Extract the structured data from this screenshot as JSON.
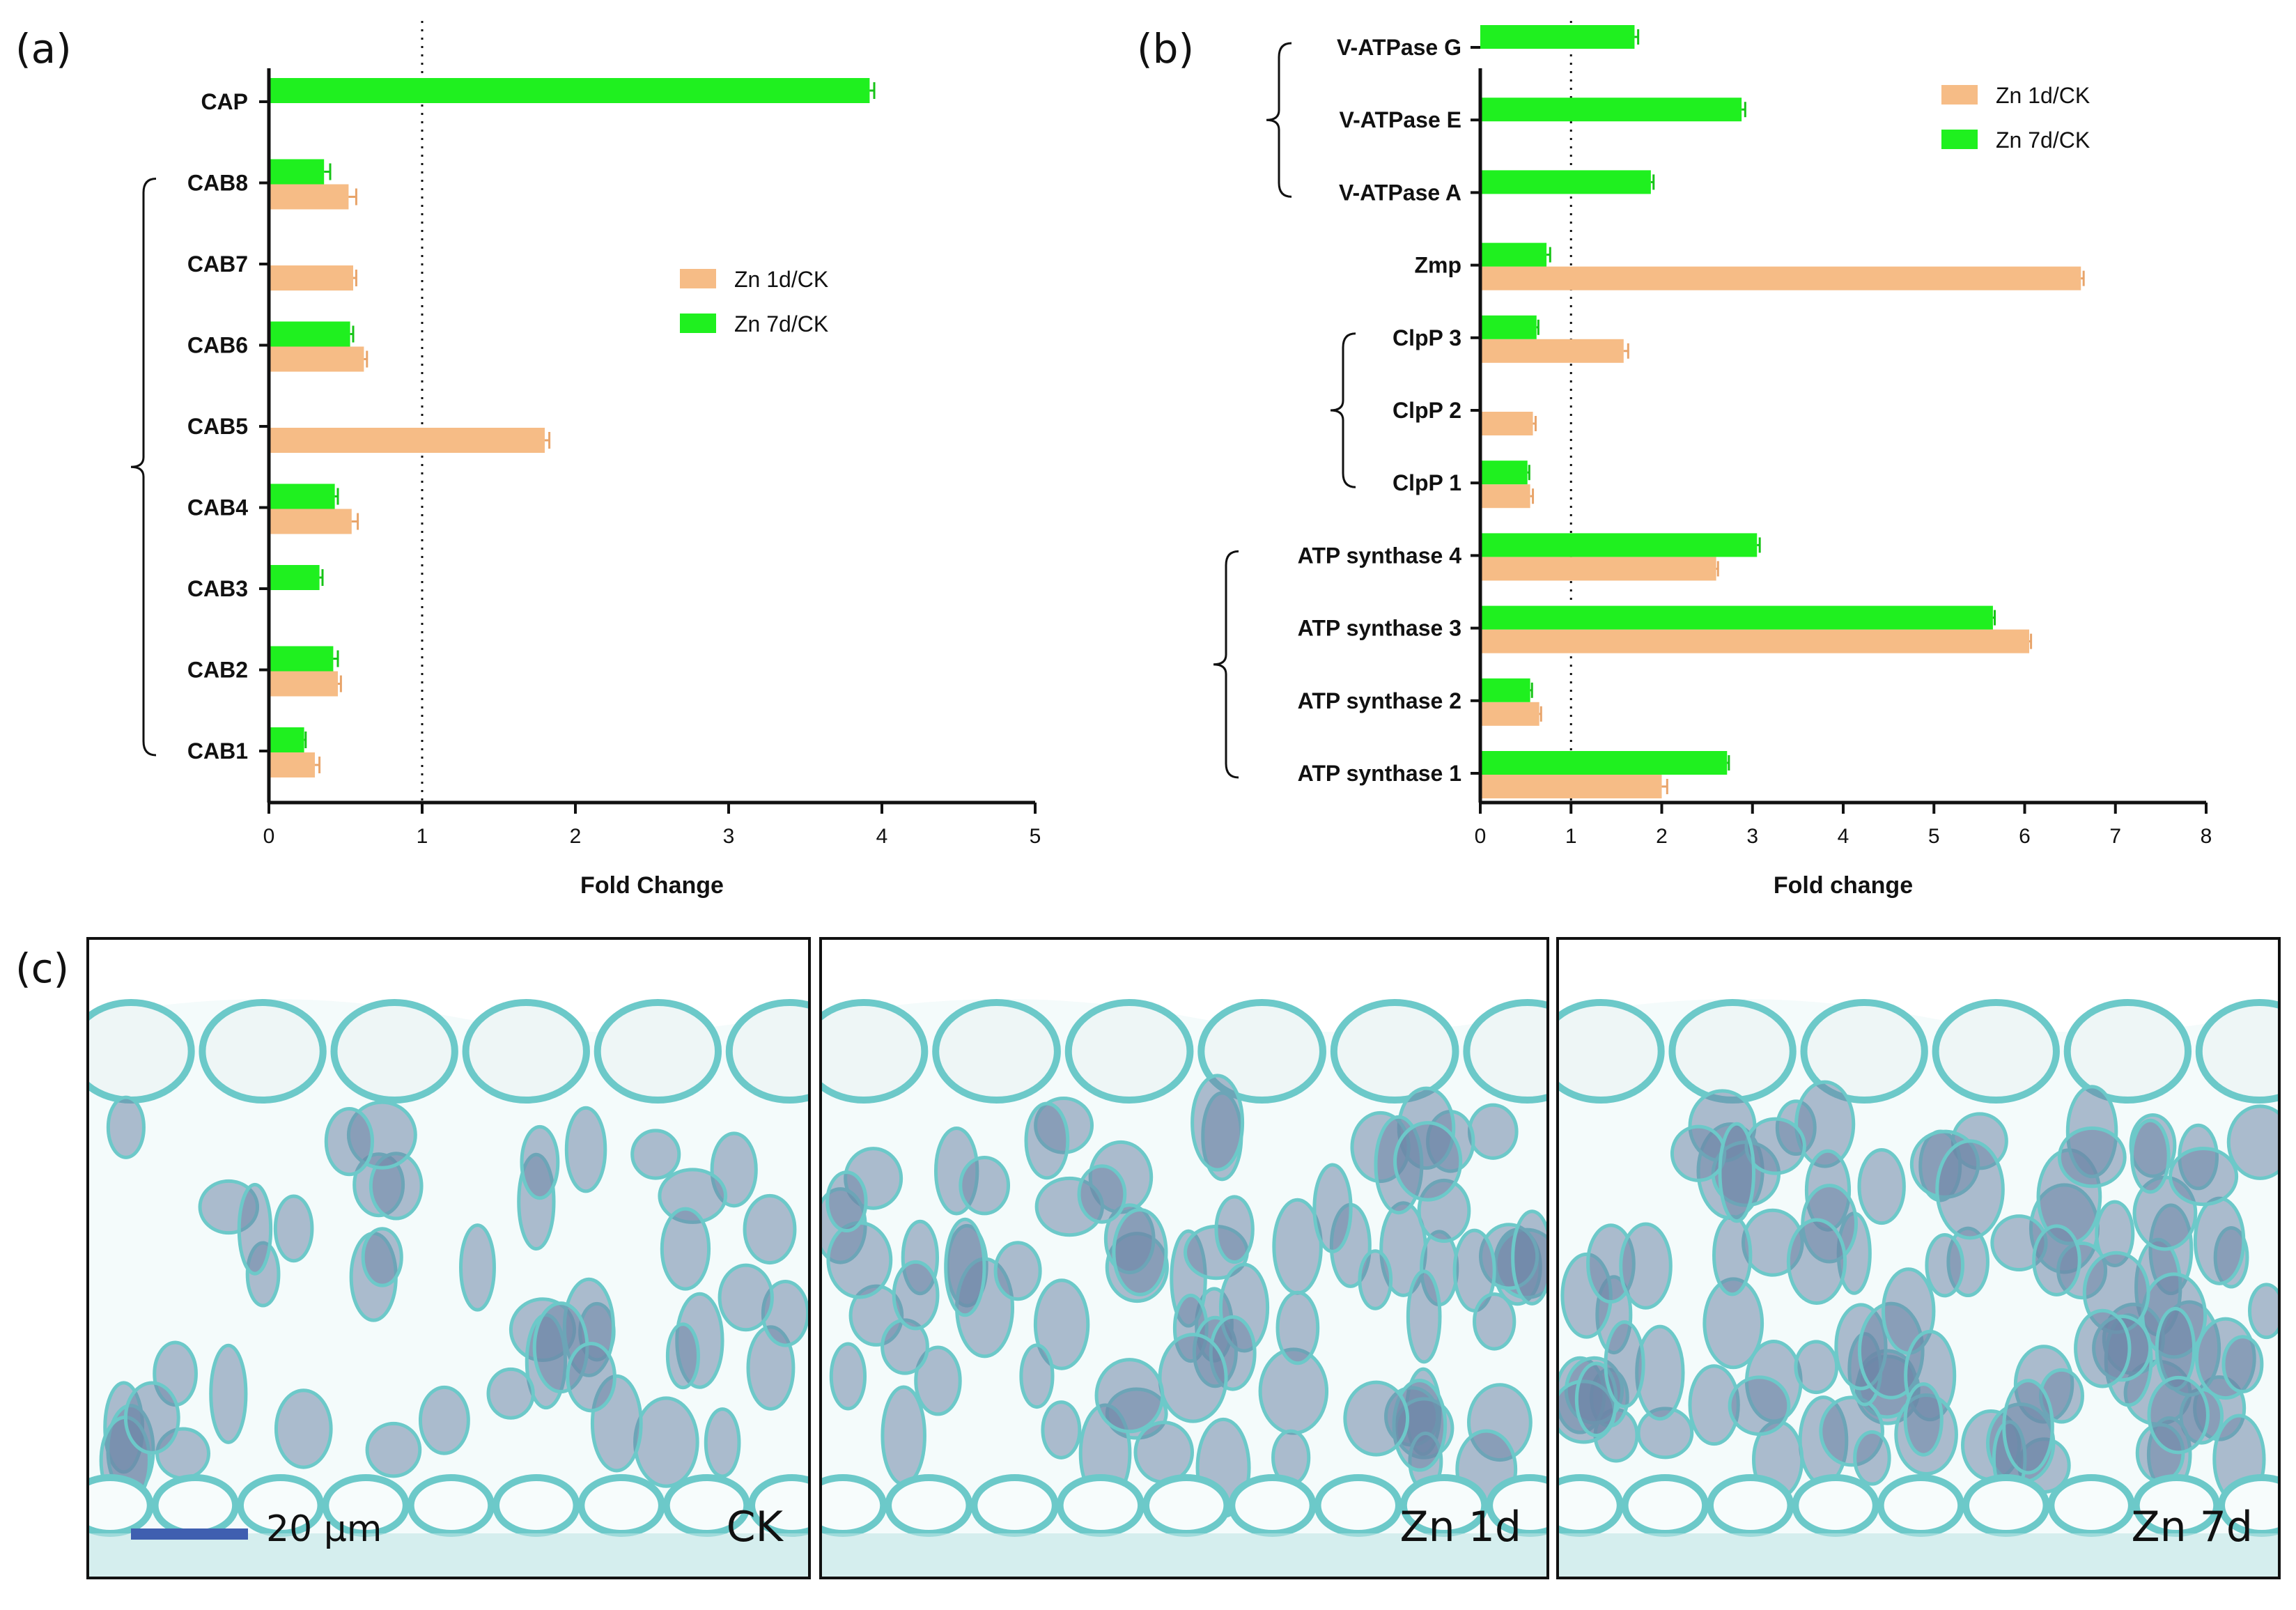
{
  "panels": {
    "a_label": "(a)",
    "b_label": "(b)",
    "c_label": "(c)"
  },
  "colors": {
    "zn1d": "#f6bc86",
    "zn7d": "#1ff01f",
    "axis": "#000000",
    "tissue": "#6cc9c9",
    "cell": "#6e86a8"
  },
  "chart_data": [
    {
      "id": "a",
      "type": "bar",
      "orientation": "horizontal",
      "title": "",
      "xlabel": "Fold Change",
      "ylabel": "",
      "xlim": [
        0,
        5
      ],
      "xticks": [
        0,
        1,
        2,
        3,
        4,
        5
      ],
      "reference_line": 1,
      "categories": [
        "CAP",
        "CAB8",
        "CAB7",
        "CAB6",
        "CAB5",
        "CAB4",
        "CAB3",
        "CAB2",
        "CAB1"
      ],
      "series": [
        {
          "name": "Zn 1d/CK",
          "color": "#f6bc86",
          "values": [
            null,
            0.52,
            0.55,
            0.62,
            1.8,
            0.54,
            null,
            0.45,
            0.3
          ],
          "errors": [
            null,
            0.05,
            0.02,
            0.02,
            0.03,
            0.04,
            null,
            0.02,
            0.03
          ]
        },
        {
          "name": "Zn 7d/CK",
          "color": "#1ff01f",
          "values": [
            3.92,
            0.36,
            null,
            0.53,
            null,
            0.43,
            0.33,
            0.42,
            0.23
          ],
          "errors": [
            0.03,
            0.04,
            null,
            0.02,
            null,
            0.02,
            0.02,
            0.03,
            0.01
          ]
        }
      ],
      "legend": "center-right",
      "brackets": [
        {
          "from": "CAB8",
          "to": "CAB1"
        }
      ]
    },
    {
      "id": "b",
      "type": "bar",
      "orientation": "horizontal",
      "title": "",
      "xlabel": "Fold change",
      "ylabel": "",
      "xlim": [
        0,
        8
      ],
      "xticks": [
        0,
        1,
        2,
        3,
        4,
        5,
        6,
        7,
        8
      ],
      "reference_line": 1,
      "categories": [
        "V-ATPase G",
        "V-ATPase E",
        "V-ATPase A",
        "Zmp",
        "ClpP 3",
        "ClpP 2",
        "ClpP 1",
        "ATP synthase 4",
        "ATP synthase 3",
        "ATP synthase 2",
        "ATP synthase 1"
      ],
      "series": [
        {
          "name": "Zn 1d/CK",
          "color": "#f6bc86",
          "values": [
            null,
            null,
            null,
            6.62,
            1.58,
            0.58,
            0.55,
            2.6,
            6.05,
            0.65,
            2.0
          ],
          "errors": [
            null,
            null,
            null,
            0.03,
            0.05,
            0.03,
            0.03,
            0.02,
            0.02,
            0.02,
            0.06
          ]
        },
        {
          "name": "Zn 7d/CK",
          "color": "#1ff01f",
          "values": [
            1.7,
            2.88,
            1.88,
            0.73,
            0.62,
            null,
            0.52,
            3.05,
            5.65,
            0.55,
            2.72
          ],
          "errors": [
            0.04,
            0.04,
            0.03,
            0.04,
            0.02,
            null,
            0.02,
            0.03,
            0.02,
            0.02,
            0.02
          ]
        }
      ],
      "legend": "top-right",
      "brackets": [
        {
          "from": "V-ATPase G",
          "to": "V-ATPase A"
        },
        {
          "from": "ClpP 3",
          "to": "ClpP 1"
        },
        {
          "from": "ATP synthase 4",
          "to": "ATP synthase 1"
        }
      ]
    }
  ],
  "micrographs": [
    {
      "label": "CK",
      "scale_bar": "20 μm"
    },
    {
      "label": "Zn 1d"
    },
    {
      "label": "Zn 7d"
    }
  ]
}
